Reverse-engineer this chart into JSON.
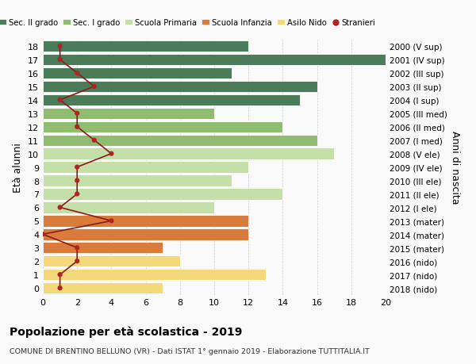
{
  "ages": [
    0,
    1,
    2,
    3,
    4,
    5,
    6,
    7,
    8,
    9,
    10,
    11,
    12,
    13,
    14,
    15,
    16,
    17,
    18
  ],
  "right_labels": [
    "2018 (nido)",
    "2017 (nido)",
    "2016 (nido)",
    "2015 (mater)",
    "2014 (mater)",
    "2013 (mater)",
    "2012 (I ele)",
    "2011 (II ele)",
    "2010 (III ele)",
    "2009 (IV ele)",
    "2008 (V ele)",
    "2007 (I med)",
    "2006 (II med)",
    "2005 (III med)",
    "2004 (I sup)",
    "2003 (II sup)",
    "2002 (III sup)",
    "2001 (IV sup)",
    "2000 (V sup)"
  ],
  "bar_values": [
    7,
    13,
    8,
    7,
    12,
    12,
    10,
    14,
    11,
    12,
    17,
    16,
    14,
    10,
    15,
    16,
    11,
    20,
    12
  ],
  "bar_colors": [
    "#f5d87a",
    "#f5d87a",
    "#f5d87a",
    "#d97b3a",
    "#d97b3a",
    "#d97b3a",
    "#c5dfa8",
    "#c5dfa8",
    "#c5dfa8",
    "#c5dfa8",
    "#c5dfa8",
    "#8fbc6e",
    "#8fbc6e",
    "#8fbc6e",
    "#4a7c59",
    "#4a7c59",
    "#4a7c59",
    "#4a7c59",
    "#4a7c59"
  ],
  "stranieri_values": [
    1,
    1,
    2,
    2,
    0,
    4,
    1,
    2,
    2,
    2,
    4,
    3,
    2,
    2,
    1,
    3,
    2,
    1,
    1
  ],
  "legend_labels": [
    "Sec. II grado",
    "Sec. I grado",
    "Scuola Primaria",
    "Scuola Infanzia",
    "Asilo Nido",
    "Stranieri"
  ],
  "legend_colors": [
    "#4a7c59",
    "#8fbc6e",
    "#c5dfa8",
    "#d97b3a",
    "#f5d87a",
    "#b22222"
  ],
  "title": "Popolazione per età scolastica - 2019",
  "subtitle": "COMUNE DI BRENTINO BELLUNO (VR) - Dati ISTAT 1° gennaio 2019 - Elaborazione TUTTITALIA.IT",
  "ylabel_left": "Età alunni",
  "ylabel_right": "Anni di nascita",
  "xlim": [
    0,
    20
  ],
  "background_color": "#f9f9f9",
  "grid_color": "#cccccc",
  "stranieri_color": "#b22222",
  "stranieri_line_color": "#8b1a1a"
}
